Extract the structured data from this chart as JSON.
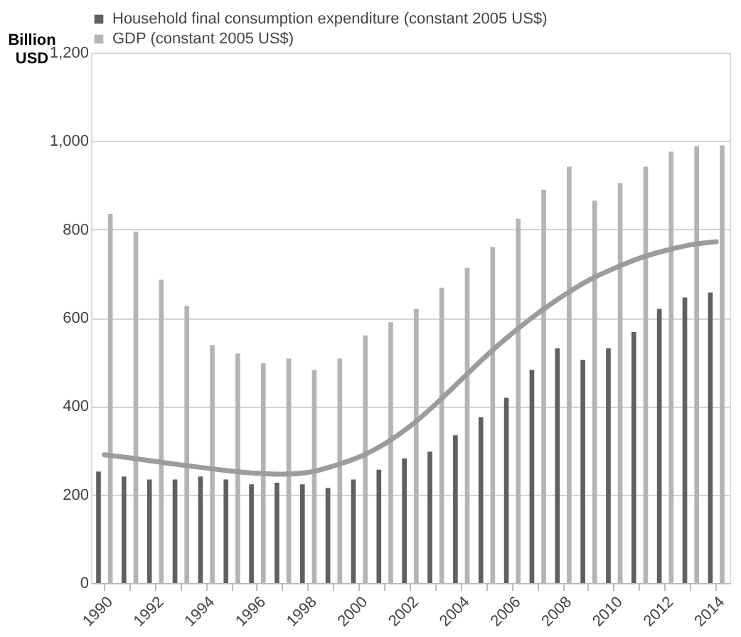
{
  "chart_data": {
    "type": "bar",
    "ylabel": "Billion USD",
    "categories": [
      "1990",
      null,
      "1992",
      null,
      "1994",
      null,
      "1996",
      null,
      "1998",
      null,
      "2000",
      null,
      "2002",
      null,
      "2004",
      null,
      "2006",
      null,
      "2008",
      null,
      "2010",
      null,
      "2012",
      null,
      "2014"
    ],
    "series": [
      {
        "name": "Household final consumption expenditure (constant 2005 US$)",
        "color": "#606060",
        "values": [
          252,
          241,
          234,
          234,
          241,
          234,
          223,
          227,
          223,
          215,
          234,
          256,
          282,
          297,
          334,
          375,
          419,
          482,
          531,
          505,
          531,
          568,
          620,
          646,
          657
        ]
      },
      {
        "name": "GDP (constant 2005 US$)",
        "color": "#b4b4b4",
        "values": [
          835,
          795,
          686,
          627,
          538,
          519,
          497,
          508,
          482,
          508,
          560,
          590,
          620,
          668,
          713,
          760,
          824,
          890,
          942,
          865,
          905,
          942,
          976,
          988,
          990
        ]
      },
      {
        "type": "line",
        "color": "#9c9c9c",
        "values": [
          290,
          283,
          275,
          267,
          260,
          253,
          248,
          246,
          250,
          265,
          285,
          315,
          355,
          405,
          460,
          515,
          565,
          610,
          650,
          685,
          712,
          735,
          752,
          765,
          772
        ]
      }
    ],
    "ylim": [
      0,
      1200
    ],
    "yticks": [
      0,
      200,
      400,
      600,
      800,
      {
        "value": 1000,
        "label": "1,000"
      },
      {
        "value": 1200,
        "label": "1,200"
      }
    ],
    "grid": "y",
    "legend": "top left"
  }
}
